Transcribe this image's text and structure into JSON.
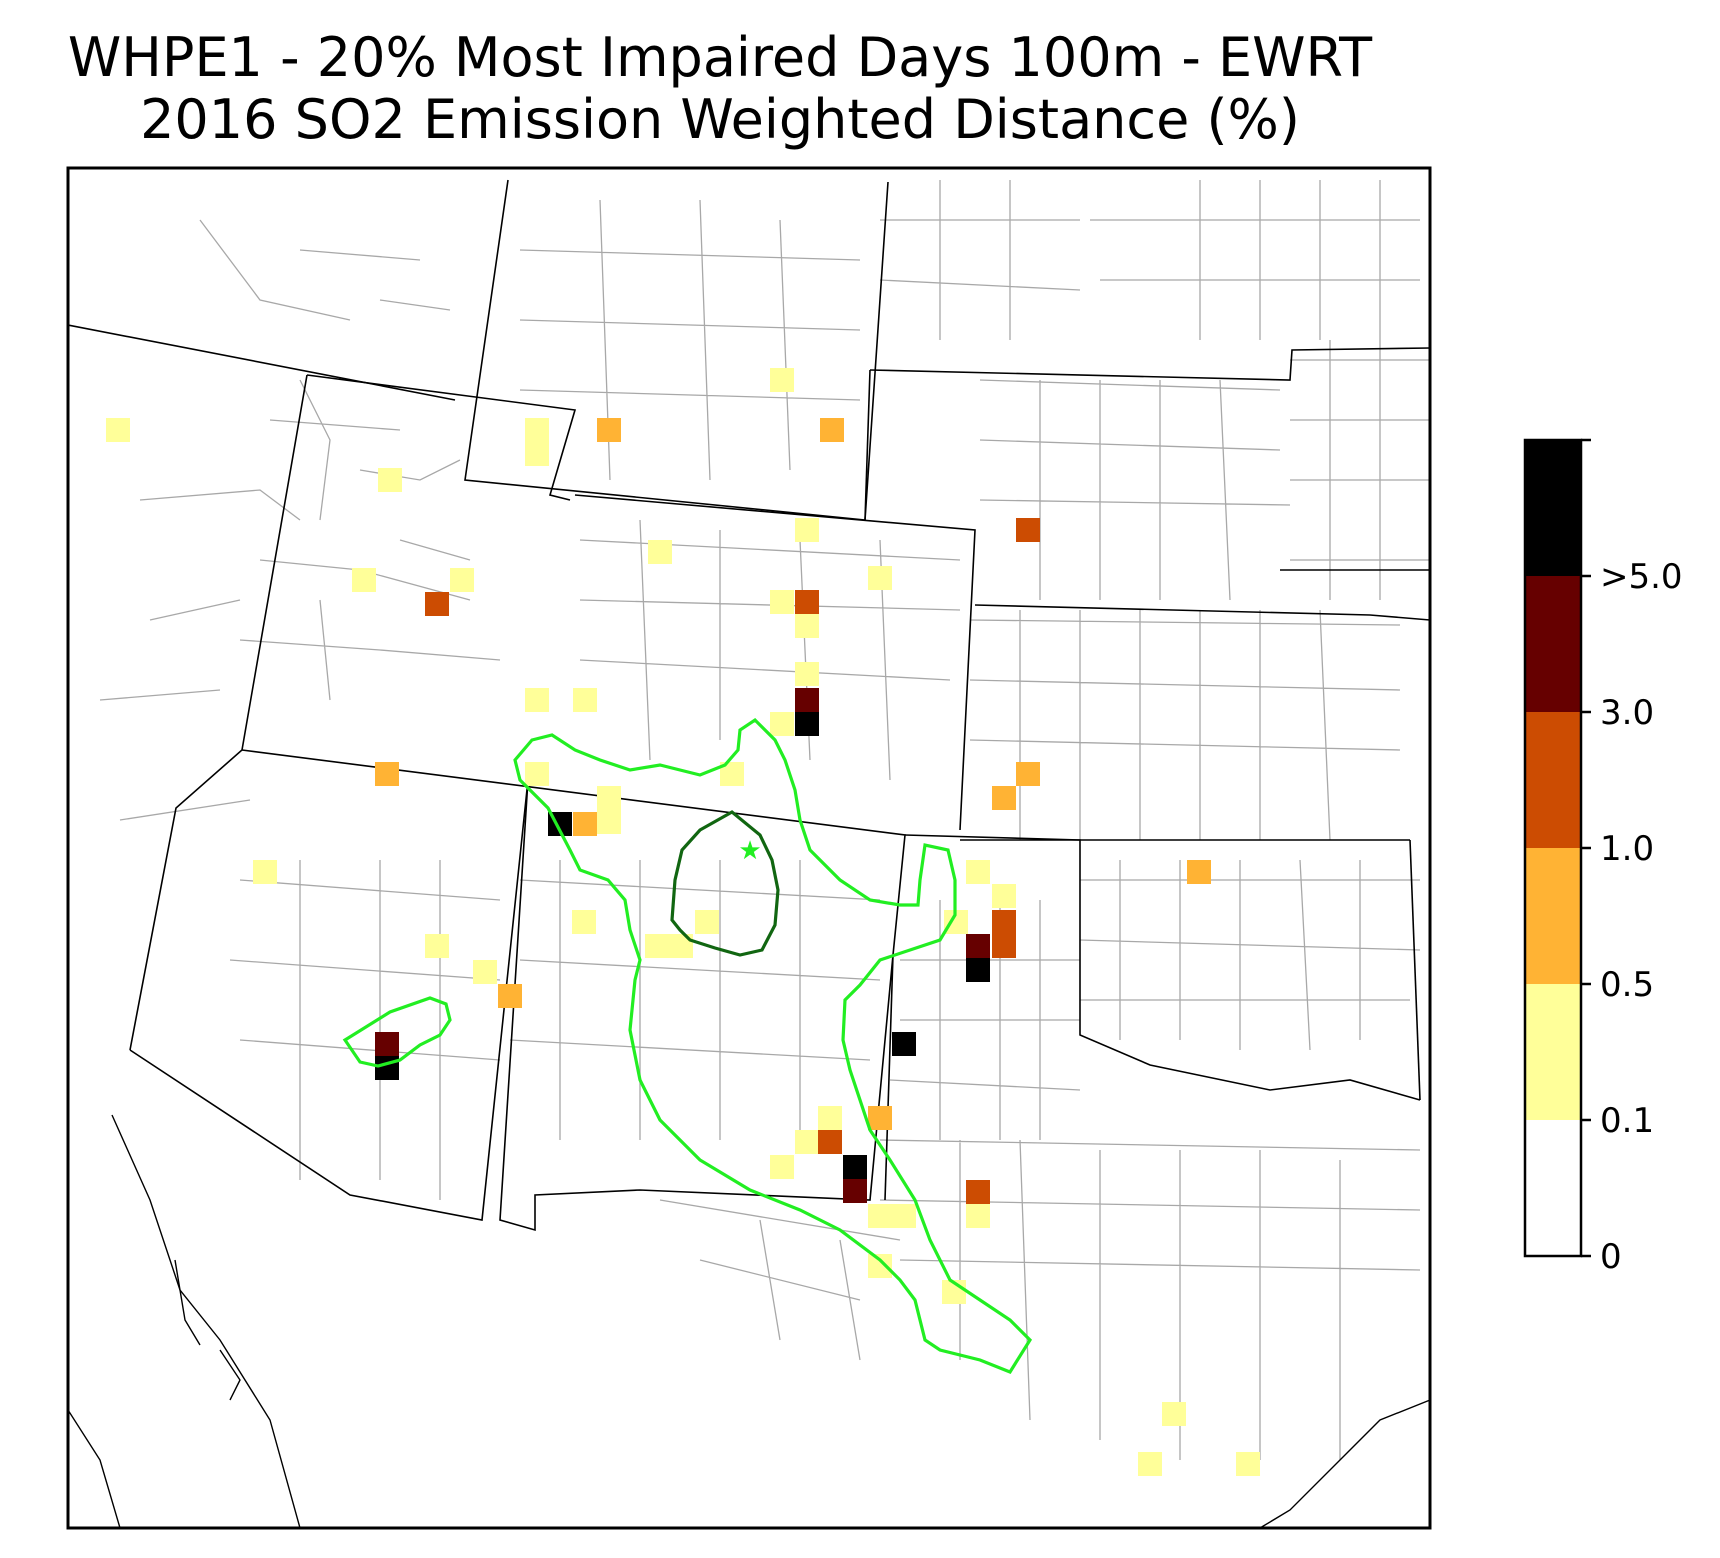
{
  "title": {
    "line1": "WHPE1 - 20% Most Impaired Days 100m - EWRT",
    "line2": "2016 SO2 Emission Weighted Distance (%)"
  },
  "colorbar": {
    "labels": [
      "0",
      "0.1",
      "0.5",
      "1.0",
      "3.0",
      ">5.0"
    ],
    "colors": [
      "#ffffff",
      "#ffff99",
      "#ffb334",
      "#cc4c02",
      "#660000",
      "#000000"
    ]
  },
  "map": {
    "contour_outer_color": "#22ee22",
    "contour_inner_color": "#116611",
    "marker_symbol": "★",
    "marker_color": "#22ee22",
    "state_line_color": "#000000",
    "county_line_color": "#a0a0a0"
  }
}
